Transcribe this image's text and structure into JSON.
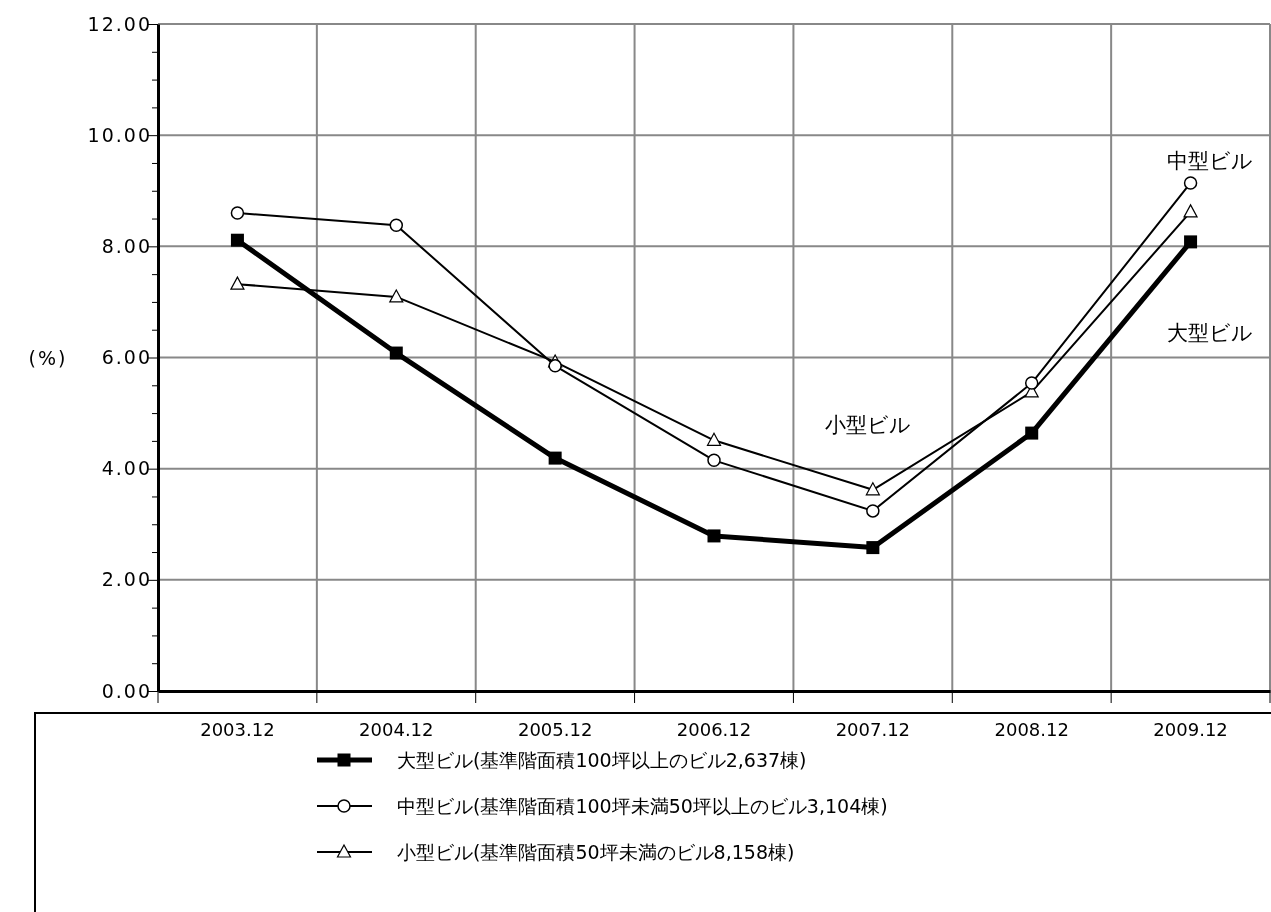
{
  "chart_data": {
    "type": "line",
    "ylabel": "(%)",
    "categories": [
      "2003.12",
      "2004.12",
      "2005.12",
      "2006.12",
      "2007.12",
      "2008.12",
      "2009.12"
    ],
    "series": [
      {
        "name": "大型ビル(基準階面積100坪以上のビル2,637棟)",
        "color": "#000000",
        "marker": "square",
        "values": [
          8.11,
          6.08,
          4.19,
          2.79,
          2.58,
          4.64,
          8.08
        ]
      },
      {
        "name": "中型ビル(基準階面積100坪未満50坪以上のビル3,104棟)",
        "color": "#000000",
        "marker": "circle",
        "values": [
          8.6,
          8.38,
          5.85,
          4.15,
          3.24,
          5.54,
          9.14
        ]
      },
      {
        "name": "小型ビル(基準階面積50坪未満のビル8,158棟)",
        "color": "#000000",
        "marker": "triangle",
        "values": [
          7.32,
          7.09,
          5.92,
          4.51,
          3.62,
          5.38,
          8.62
        ]
      }
    ],
    "ylim": [
      0,
      12
    ],
    "yticks": [
      {
        "value": 0,
        "label": "0.00"
      },
      {
        "value": 0.5,
        "label": null
      },
      {
        "value": 1,
        "label": null
      },
      {
        "value": 1.5,
        "label": null
      },
      {
        "value": 2,
        "label": "2.00"
      },
      {
        "value": 2.5,
        "label": null
      },
      {
        "value": 3,
        "label": null
      },
      {
        "value": 3.5,
        "label": null
      },
      {
        "value": 4,
        "label": "4.00"
      },
      {
        "value": 4.5,
        "label": null
      },
      {
        "value": 5,
        "label": null
      },
      {
        "value": 5.5,
        "label": null
      },
      {
        "value": 6,
        "label": "6.00"
      },
      {
        "value": 6.5,
        "label": null
      },
      {
        "value": 7,
        "label": null
      },
      {
        "value": 7.5,
        "label": null
      },
      {
        "value": 8,
        "label": "8.00"
      },
      {
        "value": 8.5,
        "label": null
      },
      {
        "value": 9,
        "label": null
      },
      {
        "value": 9.5,
        "label": null
      },
      {
        "value": 10,
        "label": "10.00"
      },
      {
        "value": 10.5,
        "label": null
      },
      {
        "value": 11,
        "label": null
      },
      {
        "value": 11.5,
        "label": null
      },
      {
        "value": 12,
        "label": "12.00"
      }
    ],
    "grid": true,
    "legend": "bottom",
    "line_style": "solid",
    "annotations": [
      "中型ビル",
      "大型ビル",
      "小型ビル"
    ]
  }
}
